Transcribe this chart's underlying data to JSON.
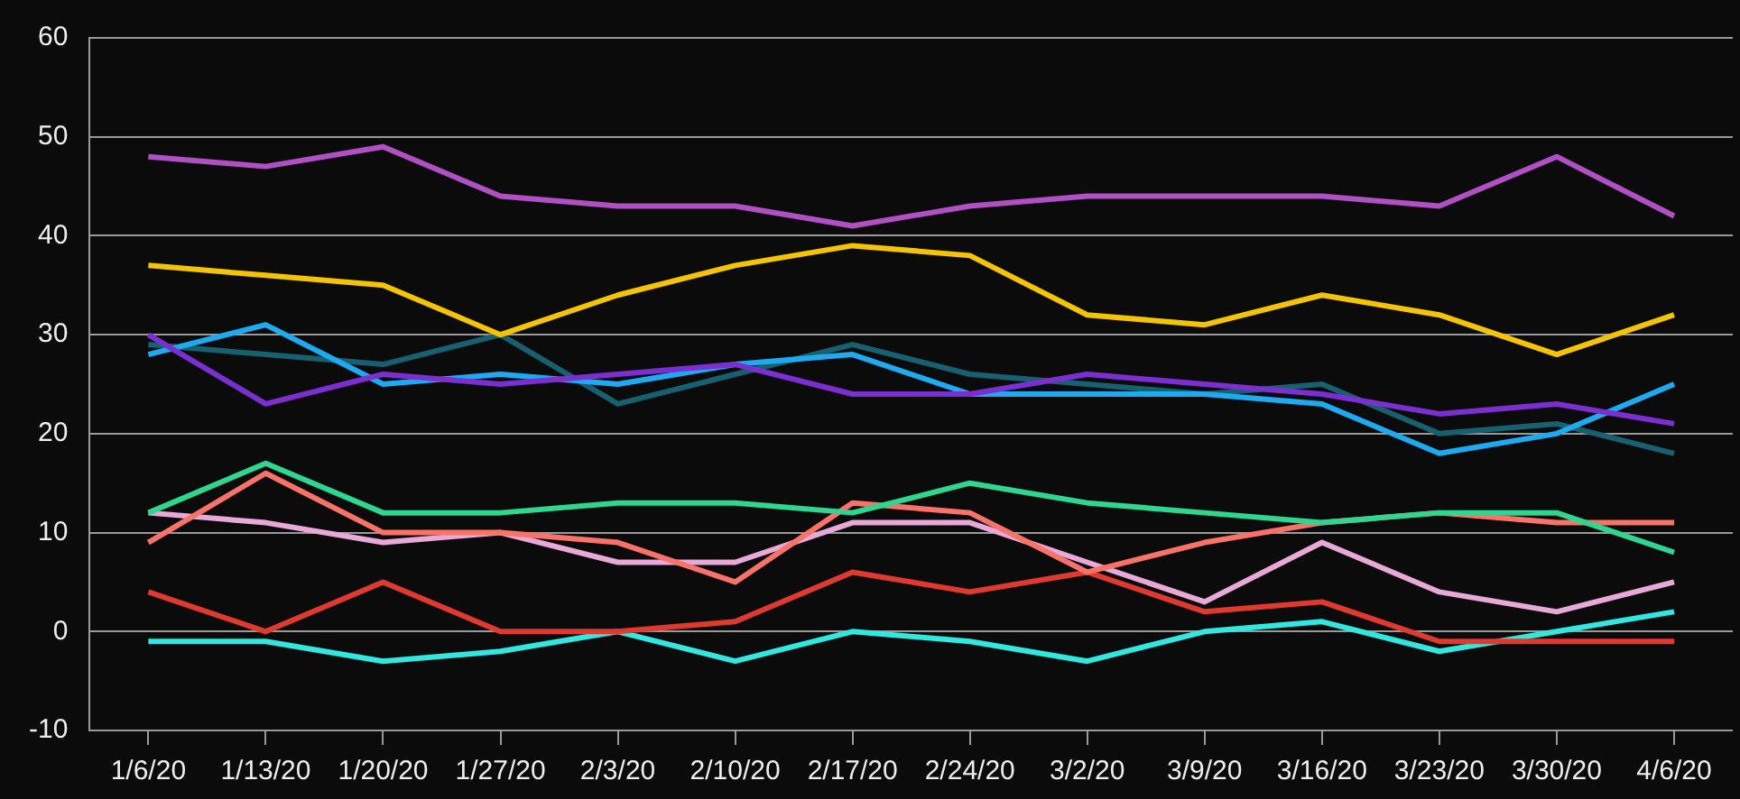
{
  "chart_data": {
    "type": "line",
    "categories": [
      "1/6/20",
      "1/13/20",
      "1/20/20",
      "1/27/20",
      "2/3/20",
      "2/10/20",
      "2/17/20",
      "2/24/20",
      "3/2/20",
      "3/9/20",
      "3/16/20",
      "3/23/20",
      "3/30/20",
      "4/6/20"
    ],
    "series": [
      {
        "color": "#b14fc5",
        "values": [
          48,
          47,
          49,
          44,
          43,
          43,
          41,
          43,
          44,
          44,
          44,
          43,
          48,
          42
        ]
      },
      {
        "color": "#f5c400",
        "values": [
          37,
          36,
          35,
          30,
          34,
          37,
          39,
          38,
          32,
          31,
          34,
          32,
          28,
          32
        ]
      },
      {
        "color": "#7b2fd0",
        "values": [
          30,
          23,
          26,
          25,
          26,
          27,
          24,
          24,
          26,
          25,
          24,
          22,
          23,
          21
        ]
      },
      {
        "color": "#1eaaf1",
        "values": [
          28,
          31,
          25,
          26,
          25,
          27,
          28,
          24,
          24,
          24,
          23,
          18,
          20,
          25
        ]
      },
      {
        "color": "#17606f",
        "values": [
          29,
          28,
          27,
          30,
          23,
          26,
          29,
          26,
          25,
          24,
          25,
          20,
          21,
          18
        ]
      },
      {
        "color": "#2ed68f",
        "values": [
          12,
          17,
          12,
          12,
          13,
          13,
          12,
          15,
          13,
          12,
          11,
          12,
          12,
          8
        ]
      },
      {
        "color": "#fa7268",
        "values": [
          9,
          16,
          10,
          10,
          9,
          5,
          13,
          12,
          6,
          9,
          11,
          12,
          11,
          11
        ]
      },
      {
        "color": "#e8a8d8",
        "values": [
          12,
          11,
          9,
          10,
          7,
          7,
          11,
          11,
          7,
          3,
          9,
          4,
          2,
          5
        ]
      },
      {
        "color": "#e0392f",
        "values": [
          4,
          0,
          5,
          0,
          0,
          1,
          6,
          4,
          6,
          2,
          3,
          -1,
          -1,
          -1
        ]
      },
      {
        "color": "#30e8e0",
        "values": [
          -1,
          -1,
          -3,
          -2,
          0,
          -3,
          0,
          -1,
          -3,
          0,
          1,
          -2,
          0,
          2
        ]
      }
    ],
    "ylim": [
      -10,
      60
    ],
    "yticks": [
      -10,
      0,
      10,
      20,
      30,
      40,
      50,
      60
    ],
    "grid": "y",
    "legend": false,
    "marker": "none",
    "line_style": "solid"
  }
}
